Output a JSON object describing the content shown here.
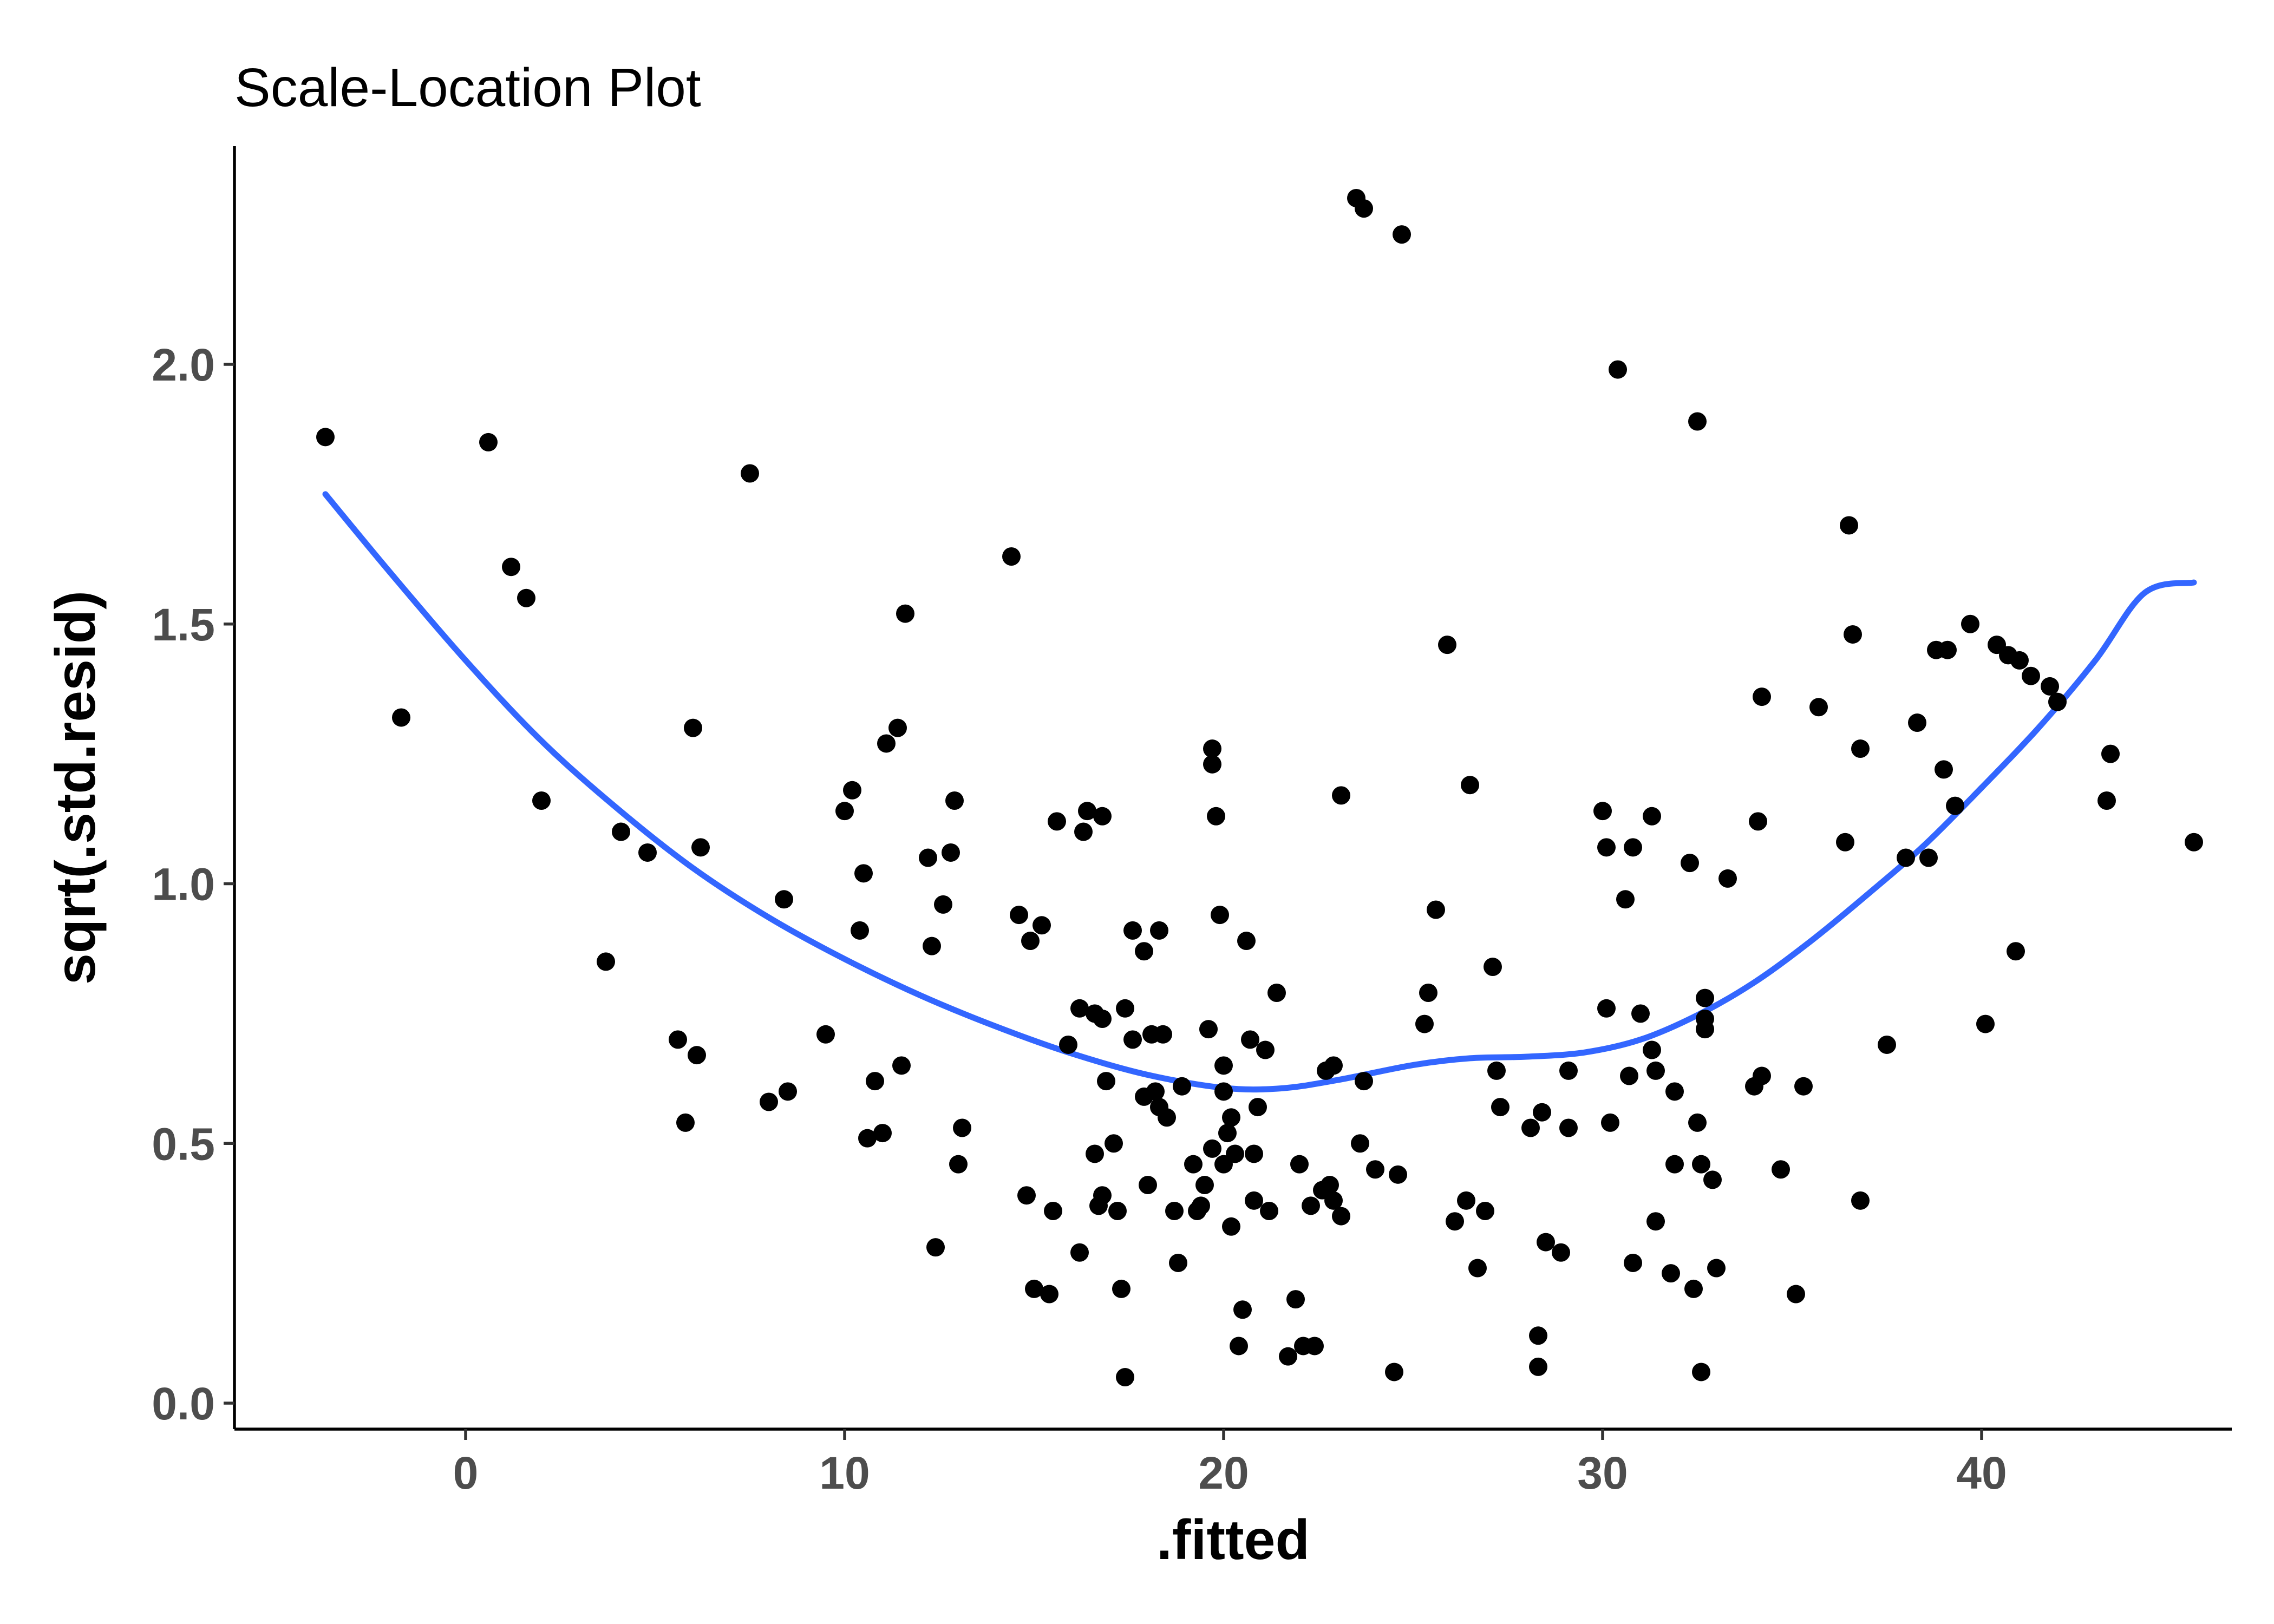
{
  "chart_data": {
    "type": "scatter",
    "title": "Scale-Location Plot",
    "xlabel": ".fitted",
    "ylabel": "sqrt(.std.resid)",
    "xlim": [
      -6.1,
      46.6
    ],
    "ylim": [
      -0.05,
      2.42
    ],
    "x_ticks": [
      0,
      10,
      20,
      30,
      40
    ],
    "x_tick_labels": [
      "0",
      "10",
      "20",
      "30",
      "40"
    ],
    "y_ticks": [
      0.0,
      0.5,
      1.0,
      1.5,
      2.0
    ],
    "y_tick_labels": [
      "0.0",
      "0.5",
      "1.0",
      "1.5",
      "2.0"
    ],
    "grid": false,
    "point_color": "#000000",
    "smooth_color": "#3366ff",
    "points": [
      [
        -3.7,
        1.86
      ],
      [
        -1.7,
        1.32
      ],
      [
        0.6,
        1.85
      ],
      [
        1.2,
        1.61
      ],
      [
        1.6,
        1.55
      ],
      [
        2.0,
        1.16
      ],
      [
        3.7,
        0.85
      ],
      [
        4.1,
        1.1
      ],
      [
        4.8,
        1.06
      ],
      [
        5.6,
        0.7
      ],
      [
        5.8,
        0.54
      ],
      [
        6.0,
        1.3
      ],
      [
        6.1,
        0.67
      ],
      [
        6.2,
        1.07
      ],
      [
        7.5,
        1.79
      ],
      [
        8.0,
        0.58
      ],
      [
        8.4,
        0.97
      ],
      [
        8.5,
        0.6
      ],
      [
        9.5,
        0.71
      ],
      [
        10.0,
        1.14
      ],
      [
        10.2,
        1.18
      ],
      [
        10.4,
        0.91
      ],
      [
        10.5,
        1.02
      ],
      [
        10.6,
        0.51
      ],
      [
        10.8,
        0.62
      ],
      [
        11.0,
        0.52
      ],
      [
        11.1,
        1.27
      ],
      [
        11.4,
        1.3
      ],
      [
        11.5,
        0.65
      ],
      [
        11.6,
        1.52
      ],
      [
        12.2,
        1.05
      ],
      [
        12.3,
        0.88
      ],
      [
        12.4,
        0.3
      ],
      [
        12.6,
        0.96
      ],
      [
        12.8,
        1.06
      ],
      [
        12.9,
        1.16
      ],
      [
        13.0,
        0.46
      ],
      [
        13.1,
        0.53
      ],
      [
        14.4,
        1.63
      ],
      [
        14.6,
        0.94
      ],
      [
        14.8,
        0.4
      ],
      [
        14.9,
        0.89
      ],
      [
        15.0,
        0.22
      ],
      [
        15.2,
        0.92
      ],
      [
        15.4,
        0.21
      ],
      [
        15.5,
        0.37
      ],
      [
        15.6,
        1.12
      ],
      [
        15.9,
        0.69
      ],
      [
        16.2,
        0.29
      ],
      [
        16.2,
        0.76
      ],
      [
        16.3,
        1.1
      ],
      [
        16.4,
        1.14
      ],
      [
        16.6,
        0.75
      ],
      [
        16.6,
        0.48
      ],
      [
        16.7,
        0.38
      ],
      [
        16.8,
        1.13
      ],
      [
        16.8,
        0.74
      ],
      [
        16.8,
        0.4
      ],
      [
        16.9,
        0.62
      ],
      [
        17.1,
        0.5
      ],
      [
        17.2,
        0.37
      ],
      [
        17.3,
        0.22
      ],
      [
        17.4,
        0.05
      ],
      [
        17.4,
        0.76
      ],
      [
        17.6,
        0.7
      ],
      [
        17.6,
        0.91
      ],
      [
        17.9,
        0.59
      ],
      [
        17.9,
        0.87
      ],
      [
        18.0,
        0.42
      ],
      [
        18.1,
        0.71
      ],
      [
        18.2,
        0.6
      ],
      [
        18.3,
        0.57
      ],
      [
        18.3,
        0.91
      ],
      [
        18.4,
        0.71
      ],
      [
        18.5,
        0.55
      ],
      [
        18.7,
        0.37
      ],
      [
        18.8,
        0.27
      ],
      [
        18.9,
        0.61
      ],
      [
        19.2,
        0.46
      ],
      [
        19.3,
        0.37
      ],
      [
        19.4,
        0.38
      ],
      [
        19.5,
        0.42
      ],
      [
        19.6,
        0.72
      ],
      [
        19.7,
        0.49
      ],
      [
        19.7,
        1.23
      ],
      [
        19.7,
        1.26
      ],
      [
        19.8,
        1.13
      ],
      [
        19.9,
        0.94
      ],
      [
        20.0,
        0.6
      ],
      [
        20.0,
        0.65
      ],
      [
        20.0,
        0.46
      ],
      [
        20.1,
        0.52
      ],
      [
        20.2,
        0.55
      ],
      [
        20.2,
        0.34
      ],
      [
        20.3,
        0.48
      ],
      [
        20.4,
        0.11
      ],
      [
        20.5,
        0.18
      ],
      [
        20.6,
        0.89
      ],
      [
        20.7,
        0.7
      ],
      [
        20.8,
        0.48
      ],
      [
        20.8,
        0.39
      ],
      [
        20.9,
        0.57
      ],
      [
        21.1,
        0.68
      ],
      [
        21.2,
        0.37
      ],
      [
        21.4,
        0.79
      ],
      [
        21.7,
        0.09
      ],
      [
        21.9,
        0.2
      ],
      [
        22.0,
        0.46
      ],
      [
        22.1,
        0.11
      ],
      [
        22.3,
        0.38
      ],
      [
        22.4,
        0.11
      ],
      [
        22.6,
        0.41
      ],
      [
        22.7,
        0.64
      ],
      [
        22.8,
        0.42
      ],
      [
        22.9,
        0.39
      ],
      [
        22.9,
        0.65
      ],
      [
        23.1,
        1.17
      ],
      [
        23.1,
        0.36
      ],
      [
        23.5,
        2.32
      ],
      [
        23.6,
        0.5
      ],
      [
        23.7,
        0.62
      ],
      [
        23.7,
        2.3
      ],
      [
        24.0,
        0.45
      ],
      [
        24.5,
        0.06
      ],
      [
        24.6,
        0.44
      ],
      [
        24.7,
        2.25
      ],
      [
        25.3,
        0.73
      ],
      [
        25.4,
        0.79
      ],
      [
        25.6,
        0.95
      ],
      [
        25.9,
        1.46
      ],
      [
        26.1,
        0.35
      ],
      [
        26.4,
        0.39
      ],
      [
        26.5,
        1.19
      ],
      [
        26.7,
        0.26
      ],
      [
        26.9,
        0.37
      ],
      [
        27.1,
        0.84
      ],
      [
        27.2,
        0.64
      ],
      [
        27.3,
        0.57
      ],
      [
        28.1,
        0.53
      ],
      [
        28.3,
        0.13
      ],
      [
        28.3,
        0.07
      ],
      [
        28.4,
        0.56
      ],
      [
        28.5,
        0.31
      ],
      [
        28.9,
        0.29
      ],
      [
        29.1,
        0.53
      ],
      [
        29.1,
        0.64
      ],
      [
        30.0,
        1.14
      ],
      [
        30.1,
        0.76
      ],
      [
        30.1,
        1.07
      ],
      [
        30.2,
        0.54
      ],
      [
        30.4,
        1.99
      ],
      [
        30.6,
        0.97
      ],
      [
        30.7,
        0.63
      ],
      [
        30.8,
        1.07
      ],
      [
        30.8,
        0.27
      ],
      [
        31.0,
        0.75
      ],
      [
        31.3,
        0.68
      ],
      [
        31.3,
        1.13
      ],
      [
        31.4,
        0.35
      ],
      [
        31.4,
        0.64
      ],
      [
        31.8,
        0.25
      ],
      [
        31.9,
        0.46
      ],
      [
        31.9,
        0.6
      ],
      [
        32.3,
        1.04
      ],
      [
        32.4,
        0.22
      ],
      [
        32.5,
        0.54
      ],
      [
        32.5,
        1.89
      ],
      [
        32.6,
        0.06
      ],
      [
        32.6,
        0.46
      ],
      [
        32.7,
        0.72
      ],
      [
        32.7,
        0.78
      ],
      [
        32.7,
        0.74
      ],
      [
        32.9,
        0.43
      ],
      [
        33.0,
        0.26
      ],
      [
        33.3,
        1.01
      ],
      [
        34.0,
        0.61
      ],
      [
        34.1,
        1.12
      ],
      [
        34.2,
        0.63
      ],
      [
        34.2,
        1.36
      ],
      [
        34.7,
        0.45
      ],
      [
        35.1,
        0.21
      ],
      [
        35.3,
        0.61
      ],
      [
        35.7,
        1.34
      ],
      [
        36.4,
        1.08
      ],
      [
        36.5,
        1.69
      ],
      [
        36.6,
        1.48
      ],
      [
        36.8,
        0.39
      ],
      [
        36.8,
        1.26
      ],
      [
        37.5,
        0.69
      ],
      [
        38.0,
        1.05
      ],
      [
        38.3,
        1.31
      ],
      [
        38.6,
        1.05
      ],
      [
        38.8,
        1.45
      ],
      [
        39.0,
        1.22
      ],
      [
        39.1,
        1.45
      ],
      [
        39.3,
        1.15
      ],
      [
        39.7,
        1.5
      ],
      [
        40.1,
        0.73
      ],
      [
        40.4,
        1.46
      ],
      [
        40.7,
        1.44
      ],
      [
        40.9,
        0.87
      ],
      [
        41.0,
        1.43
      ],
      [
        41.3,
        1.4
      ],
      [
        41.8,
        1.38
      ],
      [
        42.0,
        1.35
      ],
      [
        43.3,
        1.16
      ],
      [
        43.4,
        1.25
      ],
      [
        45.6,
        1.08
      ]
    ],
    "smooth": [
      [
        -3.7,
        1.75
      ],
      [
        -2.0,
        1.6
      ],
      [
        0.0,
        1.43
      ],
      [
        2.0,
        1.275
      ],
      [
        4.0,
        1.145
      ],
      [
        6.0,
        1.03
      ],
      [
        8.0,
        0.935
      ],
      [
        10.0,
        0.855
      ],
      [
        12.0,
        0.785
      ],
      [
        14.0,
        0.725
      ],
      [
        16.0,
        0.673
      ],
      [
        18.0,
        0.632
      ],
      [
        20.0,
        0.607
      ],
      [
        21.5,
        0.606
      ],
      [
        23.0,
        0.622
      ],
      [
        25.0,
        0.651
      ],
      [
        26.5,
        0.664
      ],
      [
        28.0,
        0.667
      ],
      [
        29.5,
        0.675
      ],
      [
        31.0,
        0.7
      ],
      [
        32.5,
        0.747
      ],
      [
        34.0,
        0.81
      ],
      [
        35.5,
        0.89
      ],
      [
        37.0,
        0.98
      ],
      [
        38.5,
        1.075
      ],
      [
        40.0,
        1.185
      ],
      [
        41.5,
        1.3
      ],
      [
        43.0,
        1.43
      ],
      [
        44.3,
        1.56
      ],
      [
        45.6,
        1.58
      ]
    ]
  }
}
